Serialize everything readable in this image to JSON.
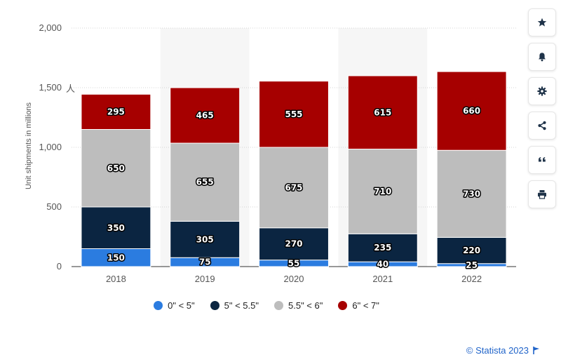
{
  "chart_data": {
    "type": "bar",
    "stacked": true,
    "categories": [
      "2018",
      "2019",
      "2020",
      "2021",
      "2022"
    ],
    "series": [
      {
        "name": "0\" < 5\"",
        "color": "#2b7ce0",
        "values": [
          150,
          75,
          55,
          40,
          25
        ]
      },
      {
        "name": "5\" < 5.5\"",
        "color": "#0b2541",
        "values": [
          350,
          305,
          270,
          235,
          220
        ]
      },
      {
        "name": "5.5\" < 6\"",
        "color": "#bdbdbd",
        "values": [
          650,
          655,
          675,
          710,
          730
        ]
      },
      {
        "name": "6\" < 7\"",
        "color": "#a60000",
        "values": [
          295,
          465,
          555,
          615,
          660
        ]
      }
    ],
    "ylabel": "Unit shipments in millions",
    "ylim": [
      0,
      2000
    ],
    "yticks": [
      "0",
      "500",
      "1,000",
      "1,500",
      "2,000"
    ],
    "grid": true,
    "legend_position": "bottom"
  },
  "credit": "© Statista 2023",
  "toolbar": {
    "icons": [
      "star-icon",
      "bell-icon",
      "gear-icon",
      "share-icon",
      "quote-icon",
      "print-icon"
    ]
  }
}
